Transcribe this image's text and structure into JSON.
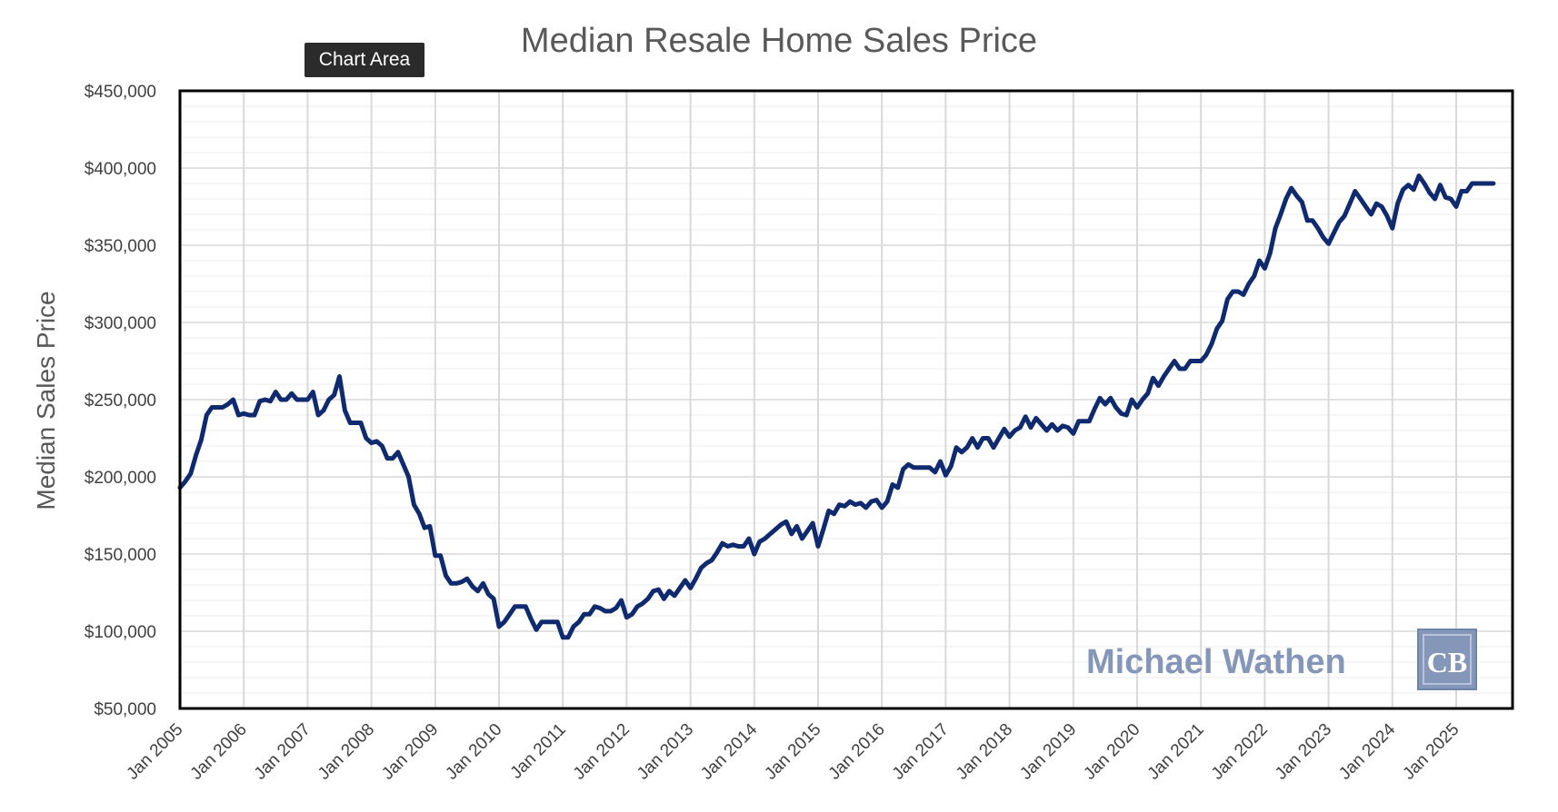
{
  "tooltip": "Chart Area",
  "watermark": {
    "text": "Michael Wathen",
    "logo_text": "CB",
    "color": "#8497b8"
  },
  "colors": {
    "line": "#0f2a6e",
    "grid": "#d9d9d9",
    "minor_grid": "#ececec",
    "frame": "#000000"
  },
  "chart_data": {
    "type": "line",
    "title": "Median Resale Home Sales Price",
    "xlabel": "",
    "ylabel": "Median Sales Price",
    "ylim": [
      50000,
      450000
    ],
    "yticks": [
      "$50,000",
      "$100,000",
      "$150,000",
      "$200,000",
      "$250,000",
      "$300,000",
      "$350,000",
      "$400,000",
      "$450,000"
    ],
    "xticks": [
      "Jan 2005",
      "Jan 2006",
      "Jan 2007",
      "Jan 2008",
      "Jan 2009",
      "Jan 2010",
      "Jan 2011",
      "Jan 2012",
      "Jan 2013",
      "Jan 2014",
      "Jan 2015",
      "Jan 2016",
      "Jan 2017",
      "Jan 2018",
      "Jan 2019",
      "Jan 2020",
      "Jan 2021",
      "Jan 2022",
      "Jan 2023",
      "Jan 2024",
      "Jan 2025"
    ],
    "grid": true,
    "x_start": "2005-01",
    "x_step": "month",
    "series": [
      {
        "values": [
          193000,
          197000,
          202000,
          214000,
          224000,
          240000,
          245000,
          245000,
          245000,
          247000,
          250000,
          240000,
          241000,
          240000,
          240000,
          249000,
          250000,
          249000,
          255000,
          250000,
          250000,
          254000,
          250000,
          250000,
          250000,
          255000,
          240000,
          243000,
          250000,
          253000,
          265000,
          243000,
          235000,
          235000,
          235000,
          225000,
          222000,
          223000,
          220000,
          212000,
          212000,
          216000,
          208000,
          200000,
          182000,
          176000,
          167000,
          168000,
          149000,
          149000,
          136000,
          131000,
          131000,
          132000,
          134000,
          129000,
          126000,
          131000,
          124000,
          121000,
          103000,
          106000,
          111000,
          116000,
          116000,
          116000,
          108000,
          101000,
          106000,
          106000,
          106000,
          106000,
          96000,
          96000,
          103000,
          106000,
          111000,
          111000,
          116000,
          115000,
          113000,
          113000,
          115000,
          120000,
          109000,
          111000,
          116000,
          118000,
          121000,
          126000,
          127000,
          121000,
          126000,
          123000,
          128000,
          133000,
          128000,
          134000,
          141000,
          144000,
          146000,
          151000,
          157000,
          155000,
          156000,
          155000,
          155000,
          160000,
          150000,
          158000,
          160000,
          163000,
          166000,
          169000,
          171000,
          163000,
          168000,
          160000,
          165000,
          170000,
          155000,
          166000,
          178000,
          176000,
          182000,
          181000,
          184000,
          182000,
          183000,
          180000,
          184000,
          185000,
          180000,
          184000,
          195000,
          193000,
          205000,
          208000,
          206000,
          206000,
          206000,
          206000,
          203000,
          210000,
          201000,
          207000,
          219000,
          216000,
          219000,
          225000,
          219000,
          225000,
          225000,
          219000,
          225000,
          231000,
          226000,
          230000,
          232000,
          239000,
          232000,
          238000,
          234000,
          230000,
          234000,
          230000,
          233000,
          232000,
          228000,
          236000,
          236000,
          236000,
          244000,
          251000,
          247000,
          251000,
          245000,
          241000,
          240000,
          250000,
          245000,
          250000,
          254000,
          264000,
          259000,
          265000,
          270000,
          275000,
          270000,
          270000,
          275000,
          275000,
          275000,
          279000,
          286000,
          296000,
          301000,
          315000,
          320000,
          320000,
          318000,
          325000,
          330000,
          340000,
          335000,
          345000,
          361000,
          370000,
          380000,
          387000,
          382000,
          378000,
          366000,
          366000,
          361000,
          355000,
          351000,
          358000,
          365000,
          369000,
          377000,
          385000,
          380000,
          375000,
          370000,
          377000,
          375000,
          369000,
          361000,
          377000,
          386000,
          389000,
          386000,
          395000,
          390000,
          384000,
          380000,
          389000,
          381000,
          380000,
          375000,
          385000,
          385000,
          390000,
          390000,
          390000,
          390000,
          390000
        ]
      }
    ]
  }
}
